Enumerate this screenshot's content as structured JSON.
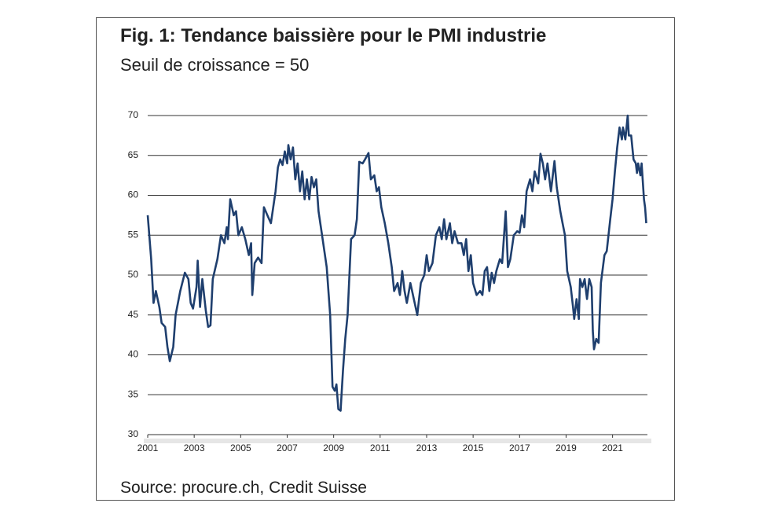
{
  "chart_data": {
    "type": "line",
    "title": "Fig. 1: Tendance baissière pour le PMI industrie",
    "subtitle": "Seuil de croissance = 50",
    "source": "Source: procure.ch, Credit Suisse",
    "color": "#1f3f6e",
    "grid": true,
    "xlim": [
      2001,
      2022.5
    ],
    "xticks": [
      2001,
      2003,
      2005,
      2007,
      2009,
      2011,
      2013,
      2015,
      2017,
      2019,
      2021
    ],
    "ylim": [
      30,
      70
    ],
    "yticks": [
      30,
      35,
      40,
      45,
      50,
      55,
      60,
      65,
      70
    ],
    "x": [
      2001.0,
      2001.15,
      2001.25,
      2001.35,
      2001.5,
      2001.6,
      2001.75,
      2001.85,
      2001.95,
      2002.1,
      2002.2,
      2002.4,
      2002.6,
      2002.75,
      2002.85,
      2002.95,
      2003.1,
      2003.15,
      2003.25,
      2003.35,
      2003.5,
      2003.6,
      2003.7,
      2003.8,
      2004.0,
      2004.15,
      2004.3,
      2004.4,
      2004.45,
      2004.55,
      2004.7,
      2004.8,
      2004.9,
      2005.05,
      2005.2,
      2005.35,
      2005.45,
      2005.5,
      2005.6,
      2005.75,
      2005.9,
      2006.0,
      2006.15,
      2006.3,
      2006.5,
      2006.6,
      2006.7,
      2006.8,
      2006.9,
      2007.0,
      2007.05,
      2007.15,
      2007.25,
      2007.35,
      2007.45,
      2007.55,
      2007.65,
      2007.75,
      2007.85,
      2007.95,
      2008.05,
      2008.15,
      2008.25,
      2008.35,
      2008.5,
      2008.7,
      2008.85,
      2008.95,
      2009.05,
      2009.12,
      2009.2,
      2009.3,
      2009.4,
      2009.5,
      2009.6,
      2009.75,
      2009.9,
      2010.0,
      2010.1,
      2010.25,
      2010.35,
      2010.5,
      2010.6,
      2010.75,
      2010.85,
      2010.95,
      2011.05,
      2011.2,
      2011.35,
      2011.5,
      2011.6,
      2011.75,
      2011.85,
      2011.95,
      2012.05,
      2012.15,
      2012.3,
      2012.45,
      2012.6,
      2012.75,
      2012.9,
      2013.0,
      2013.1,
      2013.25,
      2013.4,
      2013.55,
      2013.65,
      2013.75,
      2013.85,
      2014.0,
      2014.1,
      2014.2,
      2014.35,
      2014.5,
      2014.6,
      2014.7,
      2014.8,
      2014.9,
      2015.0,
      2015.15,
      2015.3,
      2015.4,
      2015.5,
      2015.6,
      2015.7,
      2015.8,
      2015.9,
      2016.0,
      2016.15,
      2016.25,
      2016.4,
      2016.5,
      2016.6,
      2016.75,
      2016.9,
      2017.0,
      2017.1,
      2017.2,
      2017.3,
      2017.45,
      2017.55,
      2017.65,
      2017.8,
      2017.9,
      2018.0,
      2018.1,
      2018.2,
      2018.35,
      2018.5,
      2018.6,
      2018.75,
      2018.85,
      2018.95,
      2019.05,
      2019.2,
      2019.3,
      2019.35,
      2019.45,
      2019.55,
      2019.6,
      2019.7,
      2019.8,
      2019.9,
      2020.0,
      2020.1,
      2020.15,
      2020.2,
      2020.3,
      2020.4,
      2020.5,
      2020.65,
      2020.75,
      2020.9,
      2021.0,
      2021.1,
      2021.2,
      2021.3,
      2021.4,
      2021.45,
      2021.55,
      2021.65,
      2021.7,
      2021.8,
      2021.9,
      2022.0,
      2022.05,
      2022.1,
      2022.2,
      2022.25,
      2022.35,
      2022.4,
      2022.45
    ],
    "values": [
      57.5,
      52,
      46.5,
      48,
      46,
      44,
      43.5,
      41,
      39.2,
      41,
      45,
      48,
      50.3,
      49.5,
      46.5,
      45.8,
      48.5,
      51.8,
      46,
      49.5,
      45.5,
      43.5,
      43.7,
      49.5,
      52,
      55,
      54,
      56,
      54.5,
      59.5,
      57.5,
      58,
      55,
      56,
      54.5,
      52.5,
      54,
      47.5,
      51.5,
      52.2,
      51.5,
      58.5,
      57.5,
      56.5,
      60.5,
      63.5,
      64.5,
      63.8,
      65.5,
      64,
      66.3,
      64.5,
      66,
      62,
      64,
      60.5,
      63,
      59.5,
      62,
      59.5,
      62.3,
      61,
      62,
      58,
      55,
      51,
      45,
      36,
      35.5,
      36.3,
      33.2,
      33,
      38,
      42,
      45,
      54.5,
      55,
      57,
      64.2,
      64,
      64.5,
      65.3,
      62,
      62.5,
      60.5,
      61,
      58.5,
      56.5,
      54,
      51,
      48,
      49,
      47.5,
      50.5,
      48,
      46.5,
      49,
      47,
      45,
      49,
      50,
      52.5,
      50.5,
      51.5,
      55,
      56,
      54.5,
      57,
      54.5,
      56.5,
      54,
      55.5,
      54,
      54,
      52.5,
      54.5,
      50.5,
      52.5,
      49,
      47.5,
      48,
      47.5,
      50.5,
      51,
      48,
      50.3,
      49,
      50.5,
      52,
      51.5,
      58,
      51,
      52,
      55,
      55.5,
      55.3,
      57.5,
      56,
      60.5,
      62,
      60.5,
      63,
      61.5,
      65.2,
      64,
      62,
      64,
      60.5,
      64.3,
      61,
      58,
      56.5,
      55,
      50.5,
      48.5,
      46,
      44.5,
      47,
      44.5,
      49.5,
      48.5,
      49.5,
      47,
      49.5,
      48.5,
      43,
      40.7,
      42,
      41.5,
      49,
      52.5,
      53,
      57,
      59.5,
      63,
      66,
      68.5,
      67,
      68.5,
      67,
      70,
      67.5,
      67.5,
      64.5,
      64,
      62.8,
      64,
      62.5,
      64,
      59.5,
      58.5,
      56.5
    ]
  }
}
